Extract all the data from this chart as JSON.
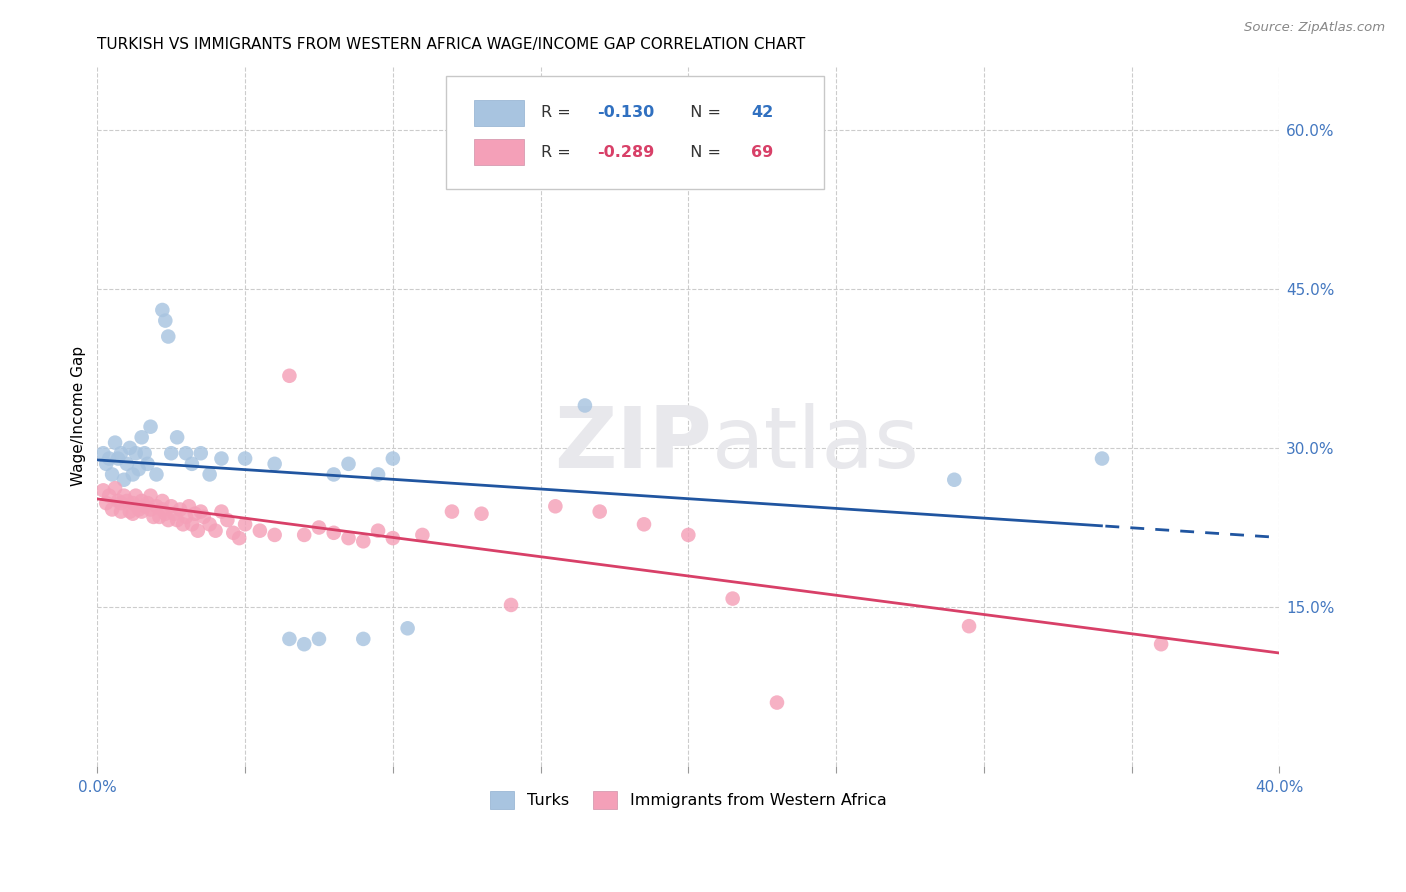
{
  "title": "TURKISH VS IMMIGRANTS FROM WESTERN AFRICA WAGE/INCOME GAP CORRELATION CHART",
  "source": "Source: ZipAtlas.com",
  "ylabel": "Wage/Income Gap",
  "right_yticks": [
    0.15,
    0.3,
    0.45,
    0.6
  ],
  "right_yticklabels": [
    "15.0%",
    "30.0%",
    "45.0%",
    "60.0%"
  ],
  "xlim": [
    0.0,
    0.4
  ],
  "ylim": [
    0.0,
    0.66
  ],
  "legend_r_blue": "-0.130",
  "legend_n_blue": "42",
  "legend_r_pink": "-0.289",
  "legend_n_pink": "69",
  "legend_label_blue": "Turks",
  "legend_label_pink": "Immigrants from Western Africa",
  "blue_color": "#a8c4e0",
  "pink_color": "#f4a0b8",
  "line_blue_color": "#2055a0",
  "line_pink_color": "#d84068",
  "grid_color": "#cccccc",
  "watermark_color": "#e8e8ec",
  "turks_x": [
    0.002,
    0.003,
    0.004,
    0.005,
    0.006,
    0.007,
    0.008,
    0.009,
    0.01,
    0.011,
    0.012,
    0.013,
    0.014,
    0.015,
    0.016,
    0.017,
    0.018,
    0.02,
    0.022,
    0.023,
    0.024,
    0.025,
    0.027,
    0.03,
    0.032,
    0.035,
    0.038,
    0.042,
    0.05,
    0.06,
    0.065,
    0.07,
    0.075,
    0.08,
    0.085,
    0.09,
    0.095,
    0.1,
    0.105,
    0.165,
    0.29,
    0.34
  ],
  "turks_y": [
    0.295,
    0.285,
    0.29,
    0.275,
    0.305,
    0.29,
    0.295,
    0.27,
    0.285,
    0.3,
    0.275,
    0.295,
    0.28,
    0.31,
    0.295,
    0.285,
    0.32,
    0.275,
    0.43,
    0.42,
    0.405,
    0.295,
    0.31,
    0.295,
    0.285,
    0.295,
    0.275,
    0.29,
    0.29,
    0.285,
    0.12,
    0.115,
    0.12,
    0.275,
    0.285,
    0.12,
    0.275,
    0.29,
    0.13,
    0.34,
    0.27,
    0.29
  ],
  "wa_x": [
    0.002,
    0.003,
    0.004,
    0.005,
    0.006,
    0.007,
    0.008,
    0.008,
    0.009,
    0.01,
    0.011,
    0.012,
    0.012,
    0.013,
    0.014,
    0.015,
    0.015,
    0.016,
    0.017,
    0.018,
    0.018,
    0.019,
    0.02,
    0.021,
    0.022,
    0.022,
    0.023,
    0.024,
    0.025,
    0.026,
    0.027,
    0.028,
    0.029,
    0.03,
    0.031,
    0.032,
    0.033,
    0.034,
    0.035,
    0.036,
    0.038,
    0.04,
    0.042,
    0.044,
    0.046,
    0.048,
    0.05,
    0.055,
    0.06,
    0.065,
    0.07,
    0.075,
    0.08,
    0.085,
    0.09,
    0.095,
    0.1,
    0.11,
    0.12,
    0.13,
    0.14,
    0.155,
    0.17,
    0.185,
    0.2,
    0.215,
    0.23,
    0.295,
    0.36
  ],
  "wa_y": [
    0.26,
    0.248,
    0.255,
    0.242,
    0.262,
    0.25,
    0.248,
    0.24,
    0.255,
    0.25,
    0.24,
    0.248,
    0.238,
    0.255,
    0.242,
    0.25,
    0.24,
    0.245,
    0.248,
    0.255,
    0.242,
    0.235,
    0.245,
    0.235,
    0.25,
    0.242,
    0.238,
    0.232,
    0.245,
    0.238,
    0.232,
    0.242,
    0.228,
    0.235,
    0.245,
    0.228,
    0.238,
    0.222,
    0.24,
    0.235,
    0.228,
    0.222,
    0.24,
    0.232,
    0.22,
    0.215,
    0.228,
    0.222,
    0.218,
    0.368,
    0.218,
    0.225,
    0.22,
    0.215,
    0.212,
    0.222,
    0.215,
    0.218,
    0.24,
    0.238,
    0.152,
    0.245,
    0.24,
    0.228,
    0.218,
    0.158,
    0.06,
    0.132,
    0.115
  ],
  "xtick_positions": [
    0.0,
    0.05,
    0.1,
    0.15,
    0.2,
    0.25,
    0.3,
    0.35,
    0.4
  ],
  "xtick_labels_show": {
    "0.0": "0.0%",
    "0.4": "40.0%"
  }
}
